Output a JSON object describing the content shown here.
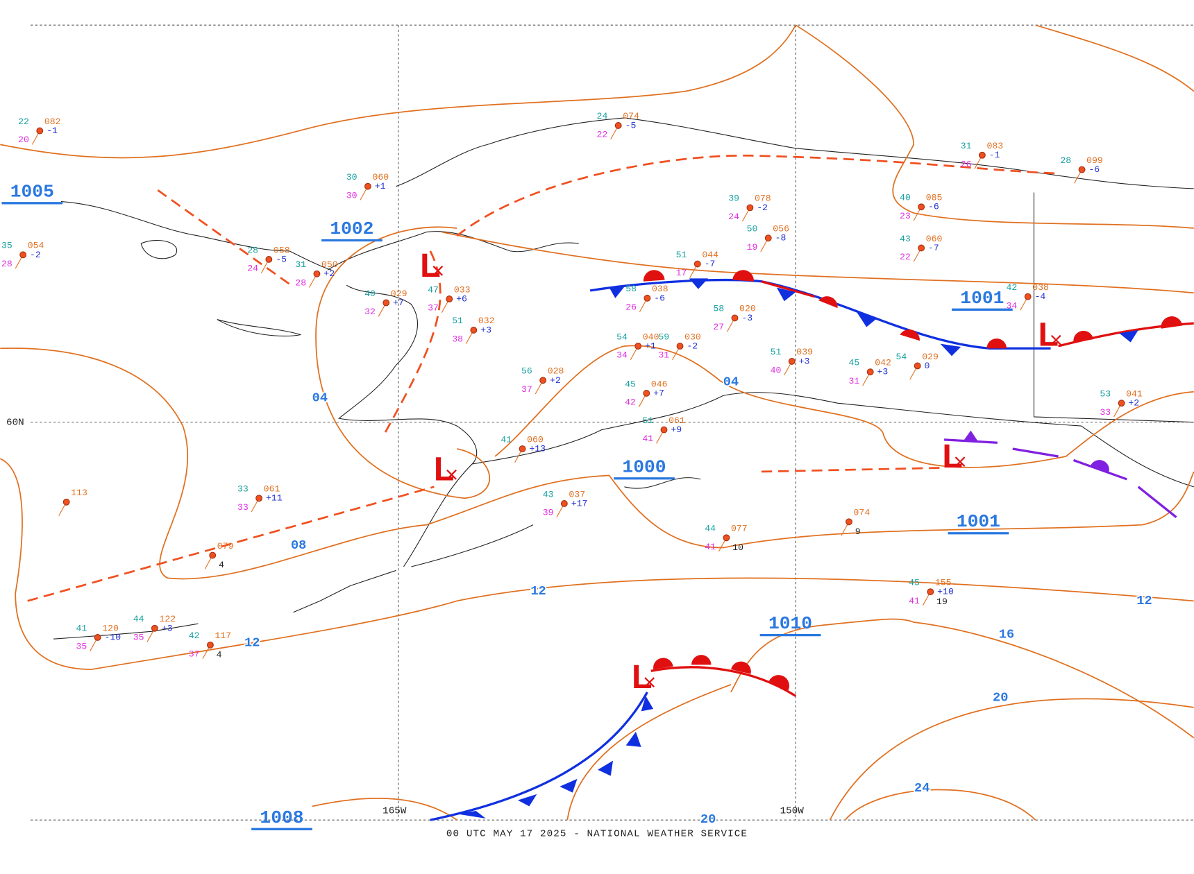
{
  "footer": "00 UTC MAY 17 2025 - NATIONAL WEATHER SERVICE",
  "grid_labels": [
    "60N",
    "165W",
    "150W"
  ],
  "isobar_labels": [
    "1005",
    "1002",
    "1001",
    "1000",
    "1001",
    "1010",
    "1008",
    "04",
    "04",
    "08",
    "12",
    "12",
    "12",
    "16",
    "20",
    "20",
    "24"
  ],
  "lows": [
    "L",
    "L",
    "L",
    "L",
    "L"
  ],
  "stations": [
    {
      "temperature": "22",
      "pressure": "082",
      "dewpoint": "20",
      "tendency": "-1"
    },
    {
      "temperature": "35",
      "pressure": "054",
      "dewpoint": "28",
      "tendency": "-2"
    },
    {
      "temperature": "30",
      "pressure": "060",
      "dewpoint": "30",
      "tendency": "+1"
    },
    {
      "temperature": "28",
      "pressure": "058",
      "dewpoint": "24",
      "tendency": "-5"
    },
    {
      "temperature": "31",
      "pressure": "050",
      "dewpoint": "28",
      "tendency": "+2"
    },
    {
      "temperature": "40",
      "pressure": "029",
      "dewpoint": "32",
      "tendency": "+7"
    },
    {
      "temperature": "47",
      "pressure": "033",
      "dewpoint": "37",
      "tendency": "+6"
    },
    {
      "temperature": "51",
      "pressure": "032",
      "dewpoint": "38",
      "tendency": "+3"
    },
    {
      "temperature": "58",
      "pressure": "038",
      "dewpoint": "26",
      "tendency": "-6"
    },
    {
      "temperature": "51",
      "pressure": "044",
      "dewpoint": "17",
      "tendency": "-7"
    },
    {
      "temperature": "39",
      "pressure": "078",
      "dewpoint": "24",
      "tendency": "-2"
    },
    {
      "temperature": "50",
      "pressure": "056",
      "dewpoint": "19",
      "tendency": "-8"
    },
    {
      "temperature": "58",
      "pressure": "020",
      "dewpoint": "27",
      "tendency": "-3"
    },
    {
      "temperature": "43",
      "pressure": "060",
      "dewpoint": "22",
      "tendency": "-7"
    },
    {
      "temperature": "40",
      "pressure": "085",
      "dewpoint": "23",
      "tendency": "-6"
    },
    {
      "temperature": "31",
      "pressure": "083",
      "dewpoint": "26",
      "tendency": "-1"
    },
    {
      "temperature": "42",
      "pressure": "038",
      "dewpoint": "34",
      "tendency": "-4"
    },
    {
      "temperature": "51",
      "pressure": "039",
      "dewpoint": "40",
      "tendency": "+3"
    },
    {
      "temperature": "45",
      "pressure": "042",
      "dewpoint": "31",
      "tendency": "+3"
    },
    {
      "temperature": "54",
      "pressure": "029",
      "tendency": "0"
    },
    {
      "temperature": "45",
      "pressure": "046",
      "dewpoint": "42",
      "tendency": "+7"
    },
    {
      "temperature": "54",
      "pressure": "040",
      "dewpoint": "34",
      "tendency": "+1"
    },
    {
      "temperature": "59",
      "pressure": "030",
      "dewpoint": "31",
      "tendency": "-2"
    },
    {
      "temperature": "56",
      "pressure": "028",
      "dewpoint": "37",
      "tendency": "+2"
    },
    {
      "temperature": "33",
      "pressure": "061",
      "dewpoint": "33",
      "tendency": "+11"
    },
    {
      "pressure": "113"
    },
    {
      "pressure": "079",
      "lower_value": "4"
    },
    {
      "pressure": "074",
      "lower_value": "9"
    },
    {
      "temperature": "44",
      "pressure": "077",
      "dewpoint": "41",
      "lower_value": "10"
    },
    {
      "temperature": "45",
      "pressure": "155",
      "dewpoint": "41",
      "tendency": "+10",
      "lower_value": "19"
    },
    {
      "temperature": "41",
      "pressure": "120",
      "dewpoint": "35",
      "tendency": "-10"
    },
    {
      "temperature": "44",
      "pressure": "122",
      "dewpoint": "35",
      "tendency": "+3"
    },
    {
      "temperature": "42",
      "pressure": "117",
      "dewpoint": "37",
      "lower_value": "4"
    },
    {
      "temperature": "51",
      "pressure": "061",
      "dewpoint": "41",
      "tendency": "+9"
    },
    {
      "temperature": "41",
      "pressure": "060",
      "tendency": "+13"
    },
    {
      "temperature": "43",
      "pressure": "037",
      "dewpoint": "39",
      "tendency": "+17"
    },
    {
      "temperature": "24",
      "pressure": "074",
      "dewpoint": "22",
      "tendency": "-5"
    },
    {
      "temperature": "28",
      "pressure": "099",
      "tendency": "-6"
    },
    {
      "temperature": "53",
      "pressure": "041",
      "dewpoint": "33",
      "tendency": "+2"
    }
  ]
}
